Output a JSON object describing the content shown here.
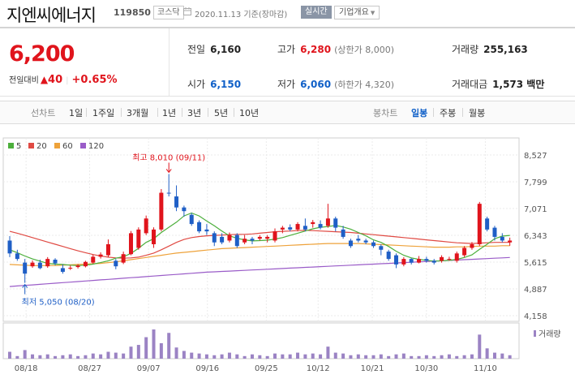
{
  "header": {
    "name": "지엔씨에너지",
    "code": "119850",
    "market": "코스닥",
    "date": "2020.11.13 기준(장마감)",
    "realtime": "실시간",
    "overview": "기업개요"
  },
  "quote": {
    "price": "6,200",
    "change_label": "전일대비",
    "change": "40",
    "rate": "+0.65%",
    "prev_label": "전일",
    "prev": "6,160",
    "high_label": "고가",
    "high": "6,280",
    "upper_limit": "(상한가 8,000)",
    "volume_label": "거래량",
    "volume": "255,163",
    "open_label": "시가",
    "open": "6,150",
    "low_label": "저가",
    "low": "6,060",
    "lower_limit": "(하한가 4,320)",
    "amount_label": "거래대금",
    "amount": "1,573 백만"
  },
  "tabs": {
    "line_label": "선차트",
    "line": [
      "1일",
      "1주일",
      "3개월",
      "1년",
      "3년",
      "5년",
      "10년"
    ],
    "candle_label": "봉차트",
    "candle": [
      "일봉",
      "주봉",
      "월봉"
    ],
    "active": "일봉"
  },
  "chart_data": {
    "type": "candlestick",
    "legend": [
      {
        "name": "5",
        "color": "#4caf3c"
      },
      {
        "name": "20",
        "color": "#e04a43"
      },
      {
        "name": "60",
        "color": "#eea23a"
      },
      {
        "name": "120",
        "color": "#9a5cc8"
      }
    ],
    "y_ticks": [
      "8,527",
      "7,799",
      "7,071",
      "6,343",
      "5,615",
      "4,887",
      "4,158"
    ],
    "y_range": [
      4158,
      8527
    ],
    "x_ticks": [
      "08/18",
      "08/27",
      "09/07",
      "09/16",
      "09/25",
      "10/12",
      "10/21",
      "10/30",
      "11/10"
    ],
    "high_note": "최고 8,010 (09/11)",
    "low_note": "최저 5,050 (08/20)",
    "volume_label": "거래량",
    "candles": [
      [
        6200,
        5850,
        6320,
        5750
      ],
      [
        5850,
        5700,
        5950,
        5650
      ],
      [
        5600,
        5300,
        5700,
        5050
      ],
      [
        5500,
        5600,
        5660,
        5460
      ],
      [
        5600,
        5450,
        5680,
        5420
      ],
      [
        5500,
        5700,
        5750,
        5460
      ],
      [
        5680,
        5580,
        5720,
        5530
      ],
      [
        5450,
        5350,
        5550,
        5300
      ],
      [
        5450,
        5460,
        5520,
        5400
      ],
      [
        5480,
        5520,
        5560,
        5440
      ],
      [
        5500,
        5620,
        5650,
        5470
      ],
      [
        5600,
        5760,
        5820,
        5570
      ],
      [
        5760,
        5820,
        5880,
        5710
      ],
      [
        5800,
        6100,
        6230,
        5750
      ],
      [
        5650,
        5500,
        5700,
        5420
      ],
      [
        5600,
        5830,
        5900,
        5560
      ],
      [
        5830,
        6400,
        6460,
        5800
      ],
      [
        6000,
        6500,
        6560,
        5950
      ],
      [
        6400,
        6800,
        6880,
        6350
      ],
      [
        6100,
        6500,
        6560,
        6000
      ],
      [
        6500,
        7500,
        7600,
        6450
      ],
      [
        7500,
        7480,
        8010,
        7400
      ],
      [
        7400,
        7100,
        7700,
        7000
      ],
      [
        7100,
        7000,
        7150,
        6850
      ],
      [
        6900,
        6650,
        6950,
        6600
      ],
      [
        6700,
        6450,
        6750,
        6400
      ],
      [
        6500,
        6450,
        6650,
        6350
      ],
      [
        6400,
        6150,
        6450,
        6050
      ],
      [
        6300,
        6150,
        6400,
        6100
      ],
      [
        6200,
        6350,
        6420,
        6150
      ],
      [
        6350,
        6050,
        6400,
        6000
      ],
      [
        6150,
        6250,
        6350,
        6100
      ],
      [
        6250,
        6200,
        6300,
        6100
      ],
      [
        6250,
        6300,
        6350,
        6200
      ],
      [
        6250,
        6300,
        6350,
        6150
      ],
      [
        6200,
        6450,
        6530,
        6150
      ],
      [
        6500,
        6550,
        6600,
        6400
      ],
      [
        6560,
        6500,
        6640,
        6450
      ],
      [
        6500,
        6650,
        6700,
        6450
      ],
      [
        6600,
        6500,
        6800,
        6450
      ],
      [
        6650,
        6700,
        6760,
        6550
      ],
      [
        6650,
        6550,
        6750,
        6500
      ],
      [
        6600,
        6800,
        7200,
        6550
      ],
      [
        6800,
        6550,
        6850,
        6450
      ],
      [
        6500,
        6300,
        6600,
        6250
      ],
      [
        6200,
        6050,
        6250,
        6000
      ],
      [
        6250,
        6200,
        6350,
        6150
      ],
      [
        6200,
        6150,
        6250,
        6100
      ],
      [
        6150,
        6050,
        6200,
        6000
      ],
      [
        6050,
        5950,
        6100,
        5800
      ],
      [
        5900,
        5700,
        5950,
        5650
      ],
      [
        5800,
        5550,
        5850,
        5450
      ],
      [
        5550,
        5700,
        5750,
        5500
      ],
      [
        5700,
        5600,
        5720,
        5550
      ],
      [
        5600,
        5700,
        5780,
        5580
      ],
      [
        5700,
        5650,
        5760,
        5600
      ],
      [
        5650,
        5600,
        5700,
        5550
      ],
      [
        5650,
        5750,
        5800,
        5600
      ],
      [
        5700,
        5700,
        5760,
        5650
      ],
      [
        5650,
        5850,
        5900,
        5600
      ],
      [
        5800,
        6000,
        6050,
        5750
      ],
      [
        6000,
        6100,
        6160,
        5950
      ],
      [
        6100,
        7200,
        7250,
        6050
      ],
      [
        6800,
        6500,
        6850,
        6450
      ],
      [
        6550,
        6300,
        6600,
        6200
      ],
      [
        6300,
        6200,
        6400,
        6150
      ],
      [
        6150,
        6200,
        6280,
        6060
      ]
    ],
    "volumes": [
      8,
      3,
      10,
      5,
      4,
      5,
      3,
      4,
      5,
      3,
      4,
      6,
      5,
      8,
      7,
      6,
      14,
      16,
      25,
      34,
      18,
      30,
      13,
      9,
      7,
      6,
      5,
      4,
      5,
      7,
      5,
      3,
      5,
      4,
      3,
      6,
      5,
      5,
      7,
      5,
      6,
      5,
      14,
      7,
      6,
      4,
      5,
      4,
      4,
      5,
      3,
      5,
      6,
      3,
      3,
      4,
      3,
      4,
      5,
      3,
      4,
      5,
      28,
      12,
      7,
      6,
      4
    ],
    "ma5": [
      5950,
      5870,
      5780,
      5700,
      5640,
      5580,
      5560,
      5550,
      5530,
      5520,
      5530,
      5560,
      5600,
      5650,
      5720,
      5760,
      5850,
      5990,
      6150,
      6250,
      6420,
      6560,
      6700,
      6870,
      6950,
      6870,
      6730,
      6600,
      6460,
      6330,
      6260,
      6220,
      6190,
      6200,
      6210,
      6240,
      6280,
      6340,
      6400,
      6460,
      6520,
      6560,
      6580,
      6610,
      6570,
      6510,
      6420,
      6330,
      6220,
      6150,
      6040,
      5910,
      5800,
      5730,
      5690,
      5660,
      5640,
      5650,
      5660,
      5690,
      5740,
      5810,
      5960,
      6100,
      6250,
      6320,
      6340
    ],
    "ma20": [
      6450,
      6400,
      6340,
      6280,
      6220,
      6160,
      6100,
      6040,
      5980,
      5920,
      5870,
      5820,
      5780,
      5750,
      5730,
      5720,
      5730,
      5750,
      5800,
      5860,
      5950,
      6050,
      6150,
      6230,
      6280,
      6310,
      6330,
      6340,
      6350,
      6360,
      6370,
      6370,
      6380,
      6400,
      6420,
      6440,
      6450,
      6460,
      6470,
      6480,
      6470,
      6460,
      6450,
      6440,
      6430,
      6420,
      6400,
      6380,
      6360,
      6340,
      6320,
      6300,
      6280,
      6260,
      6240,
      6220,
      6200,
      6180,
      6160,
      6140,
      6130,
      6120,
      6130,
      6140,
      6150,
      6150,
      6150
    ],
    "ma60": [
      5550,
      5540,
      5530,
      5520,
      5520,
      5520,
      5520,
      5530,
      5540,
      5550,
      5560,
      5570,
      5580,
      5600,
      5620,
      5650,
      5680,
      5710,
      5740,
      5770,
      5800,
      5830,
      5860,
      5880,
      5900,
      5920,
      5940,
      5960,
      5980,
      5990,
      6000,
      6010,
      6020,
      6030,
      6040,
      6050,
      6060,
      6070,
      6080,
      6090,
      6100,
      6110,
      6120,
      6120,
      6120,
      6120,
      6120,
      6110,
      6100,
      6090,
      6080,
      6070,
      6060,
      6050,
      6040,
      6030,
      6020,
      6020,
      6020,
      6030,
      6030,
      6040,
      6050,
      6050,
      6050,
      6060,
      6060
    ],
    "ma120": [
      4950,
      4965,
      4980,
      4995,
      5010,
      5025,
      5040,
      5055,
      5070,
      5085,
      5100,
      5115,
      5130,
      5145,
      5160,
      5175,
      5190,
      5205,
      5220,
      5235,
      5250,
      5265,
      5280,
      5295,
      5310,
      5325,
      5340,
      5350,
      5360,
      5370,
      5380,
      5390,
      5400,
      5410,
      5420,
      5430,
      5440,
      5450,
      5460,
      5470,
      5480,
      5490,
      5500,
      5510,
      5520,
      5530,
      5540,
      5550,
      5560,
      5570,
      5580,
      5590,
      5600,
      5610,
      5620,
      5630,
      5640,
      5650,
      5660,
      5670,
      5680,
      5690,
      5700,
      5710,
      5720,
      5730,
      5740
    ]
  }
}
